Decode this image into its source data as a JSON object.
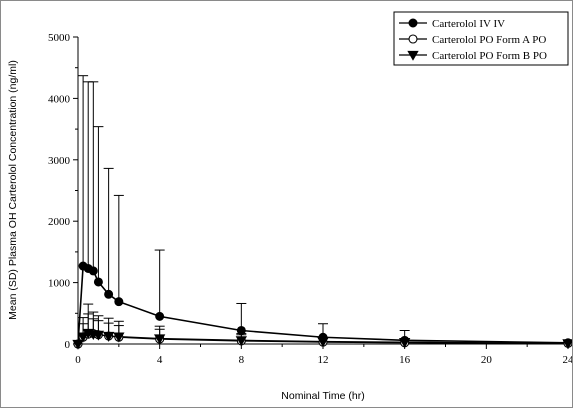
{
  "chart_data": {
    "type": "line",
    "xlabel": "Nominal Time (hr)",
    "ylabel": "Mean (SD) Plasma OH Carterolol Concentration (ng/ml)",
    "xlim": [
      0,
      24
    ],
    "ylim": [
      0,
      5000
    ],
    "x_ticks": [
      0,
      4,
      8,
      12,
      16,
      20,
      24
    ],
    "y_ticks": [
      0,
      1000,
      2000,
      3000,
      4000,
      5000
    ],
    "x_minor_step": 2,
    "y_minor_step": 500,
    "grid": false,
    "legend_position": "top-right",
    "series": [
      {
        "name": "Carterolol IV  IV",
        "marker": "filled-circle",
        "color": "#000000",
        "x": [
          0,
          0.25,
          0.5,
          0.75,
          1,
          1.5,
          2,
          4,
          8,
          12,
          16,
          24
        ],
        "y": [
          0,
          1270,
          1230,
          1190,
          1010,
          810,
          690,
          450,
          220,
          110,
          60,
          20
        ],
        "error_upper": [
          0,
          4370,
          4270,
          4270,
          3540,
          2860,
          2420,
          1530,
          660,
          330,
          220,
          50
        ]
      },
      {
        "name": "Carterolol PO Form A   PO",
        "marker": "open-circle",
        "color": "#000000",
        "x": [
          0,
          0.25,
          0.5,
          0.75,
          1,
          1.5,
          2,
          4,
          8,
          12,
          16,
          24
        ],
        "y": [
          0,
          110,
          160,
          170,
          150,
          130,
          110,
          80,
          50,
          30,
          20,
          10
        ],
        "error_upper": [
          0,
          430,
          650,
          520,
          460,
          420,
          370,
          290,
          170,
          110,
          70,
          20
        ]
      },
      {
        "name": "Carterolol PO Form B   PO",
        "marker": "filled-triangle-down",
        "color": "#000000",
        "x": [
          0,
          0.25,
          0.5,
          0.75,
          1,
          1.5,
          2,
          4,
          8,
          12,
          16,
          24
        ],
        "y": [
          0,
          120,
          180,
          160,
          150,
          130,
          120,
          90,
          60,
          40,
          30,
          10
        ],
        "error_upper": [
          0,
          330,
          490,
          410,
          380,
          340,
          300,
          240,
          150,
          90,
          60,
          20
        ]
      }
    ]
  }
}
